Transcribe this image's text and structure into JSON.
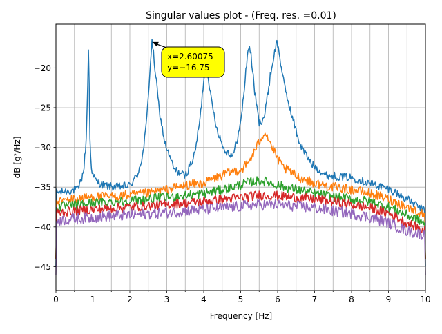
{
  "chart_data": {
    "type": "line",
    "title": "Singular values plot - (Freq. res. =0.01)",
    "xlabel": "Frequency [Hz]",
    "ylabel": "dB [g²/Hz]",
    "xlim": [
      0,
      10
    ],
    "ylim": [
      -48,
      -14.5
    ],
    "grid": true,
    "x_ticks": [
      0,
      0.5,
      1,
      1.5,
      2,
      2.5,
      3,
      3.5,
      4,
      4.5,
      5,
      5.5,
      6,
      6.5,
      7,
      7.5,
      8,
      8.5,
      9,
      9.5,
      10
    ],
    "x_tick_labels": [
      "0",
      "",
      "1",
      "",
      "2",
      "",
      "3",
      "",
      "4",
      "",
      "5",
      "",
      "6",
      "",
      "7",
      "",
      "8",
      "",
      "9",
      "",
      "10"
    ],
    "y_ticks": [
      -45,
      -40,
      -35,
      -30,
      -25,
      -20
    ],
    "y_tick_labels": [
      "−45",
      "−40",
      "−35",
      "−30",
      "−25",
      "−20"
    ],
    "annotation": {
      "line1": "x=2.60075",
      "line2": "y=−16.75",
      "point_x": 2.60075,
      "point_y": -16.75,
      "box_color": "#ffff00"
    },
    "series": [
      {
        "color": "#1f77b4",
        "noise": 0.5,
        "x": [
          0,
          0.02,
          0.3,
          0.6,
          0.75,
          0.82,
          0.86,
          0.88,
          0.9,
          0.92,
          0.95,
          1.0,
          1.1,
          1.3,
          1.6,
          2.0,
          2.2,
          2.35,
          2.45,
          2.52,
          2.57,
          2.6,
          2.63,
          2.7,
          2.8,
          2.95,
          3.2,
          3.5,
          3.75,
          3.9,
          4.0,
          4.05,
          4.1,
          4.2,
          4.35,
          4.55,
          4.8,
          5.0,
          5.1,
          5.18,
          5.23,
          5.28,
          5.38,
          5.5,
          5.65,
          5.8,
          5.92,
          5.98,
          6.04,
          6.15,
          6.35,
          6.6,
          6.9,
          7.3,
          8.0,
          8.5,
          9.0,
          9.5,
          9.98,
          10.0
        ],
        "values": [
          -45,
          -35.7,
          -35.5,
          -35.3,
          -33,
          -29,
          -22,
          -17.8,
          -22,
          -29,
          -32,
          -33.5,
          -34.3,
          -34.8,
          -35,
          -34.8,
          -33.5,
          -31,
          -27,
          -22,
          -18.5,
          -16.75,
          -17.8,
          -21,
          -25.5,
          -29.5,
          -32.8,
          -33.6,
          -31,
          -26.5,
          -21.5,
          -19.2,
          -20,
          -24,
          -27.5,
          -30.3,
          -31,
          -27,
          -22.5,
          -18.5,
          -17,
          -18.5,
          -23,
          -27,
          -26,
          -21,
          -18,
          -16.7,
          -18,
          -21.5,
          -25.5,
          -29.5,
          -32,
          -33.5,
          -33.8,
          -34.5,
          -35.2,
          -36.5,
          -38,
          -45
        ]
      },
      {
        "color": "#ff7f0e",
        "noise": 0.6,
        "x": [
          0,
          0.02,
          0.5,
          1.0,
          1.5,
          2.0,
          2.5,
          3.0,
          3.5,
          4.0,
          4.5,
          4.8,
          5.0,
          5.2,
          5.4,
          5.55,
          5.65,
          5.72,
          5.8,
          5.95,
          6.1,
          6.3,
          6.6,
          7.0,
          7.5,
          8.0,
          8.5,
          9.0,
          9.5,
          9.98,
          10.0
        ],
        "values": [
          -44,
          -36.8,
          -36.5,
          -36.2,
          -36.2,
          -36,
          -35.8,
          -35.3,
          -34.8,
          -34.5,
          -33.5,
          -33,
          -32.8,
          -32,
          -30.3,
          -28.8,
          -28,
          -28.5,
          -29.5,
          -31,
          -32.3,
          -33,
          -33.8,
          -34.5,
          -35,
          -35.3,
          -35.8,
          -36.5,
          -37.5,
          -38.5,
          -44
        ]
      },
      {
        "color": "#2ca02c",
        "noise": 0.6,
        "x": [
          0,
          0.02,
          1.0,
          2.0,
          3.0,
          4.0,
          4.5,
          5.0,
          5.3,
          5.6,
          5.9,
          6.2,
          6.6,
          7.0,
          7.5,
          8.0,
          8.5,
          9.0,
          9.5,
          9.98,
          10.0
        ],
        "values": [
          -44,
          -37.5,
          -37,
          -36.7,
          -36.3,
          -35.8,
          -35.3,
          -34.7,
          -34.3,
          -34.2,
          -34.6,
          -35,
          -35.4,
          -35.8,
          -36.2,
          -36.5,
          -36.8,
          -37.5,
          -38.5,
          -39.5,
          -44
        ]
      },
      {
        "color": "#d62728",
        "noise": 0.6,
        "x": [
          0,
          0.02,
          1.0,
          2.0,
          3.0,
          4.0,
          5.0,
          5.5,
          6.0,
          6.5,
          7.0,
          7.5,
          8.0,
          8.5,
          9.0,
          9.5,
          9.98,
          10.0
        ],
        "values": [
          -44,
          -38.2,
          -37.8,
          -37.5,
          -37.2,
          -36.8,
          -36.3,
          -36,
          -36.1,
          -36.3,
          -36.5,
          -36.8,
          -37.2,
          -37.6,
          -38.3,
          -39.5,
          -40.5,
          -44
        ]
      },
      {
        "color": "#9467bd",
        "noise": 0.7,
        "x": [
          0,
          0.02,
          1.0,
          2.0,
          3.0,
          4.0,
          5.0,
          5.5,
          6.0,
          6.5,
          7.0,
          7.5,
          8.0,
          8.5,
          9.0,
          9.5,
          9.98,
          10.0
        ],
        "values": [
          -46,
          -39.2,
          -38.8,
          -38.5,
          -38.2,
          -37.8,
          -37.4,
          -37.2,
          -37.2,
          -37.4,
          -37.6,
          -38,
          -38.3,
          -38.8,
          -39.5,
          -40.5,
          -41,
          -46
        ]
      }
    ]
  }
}
